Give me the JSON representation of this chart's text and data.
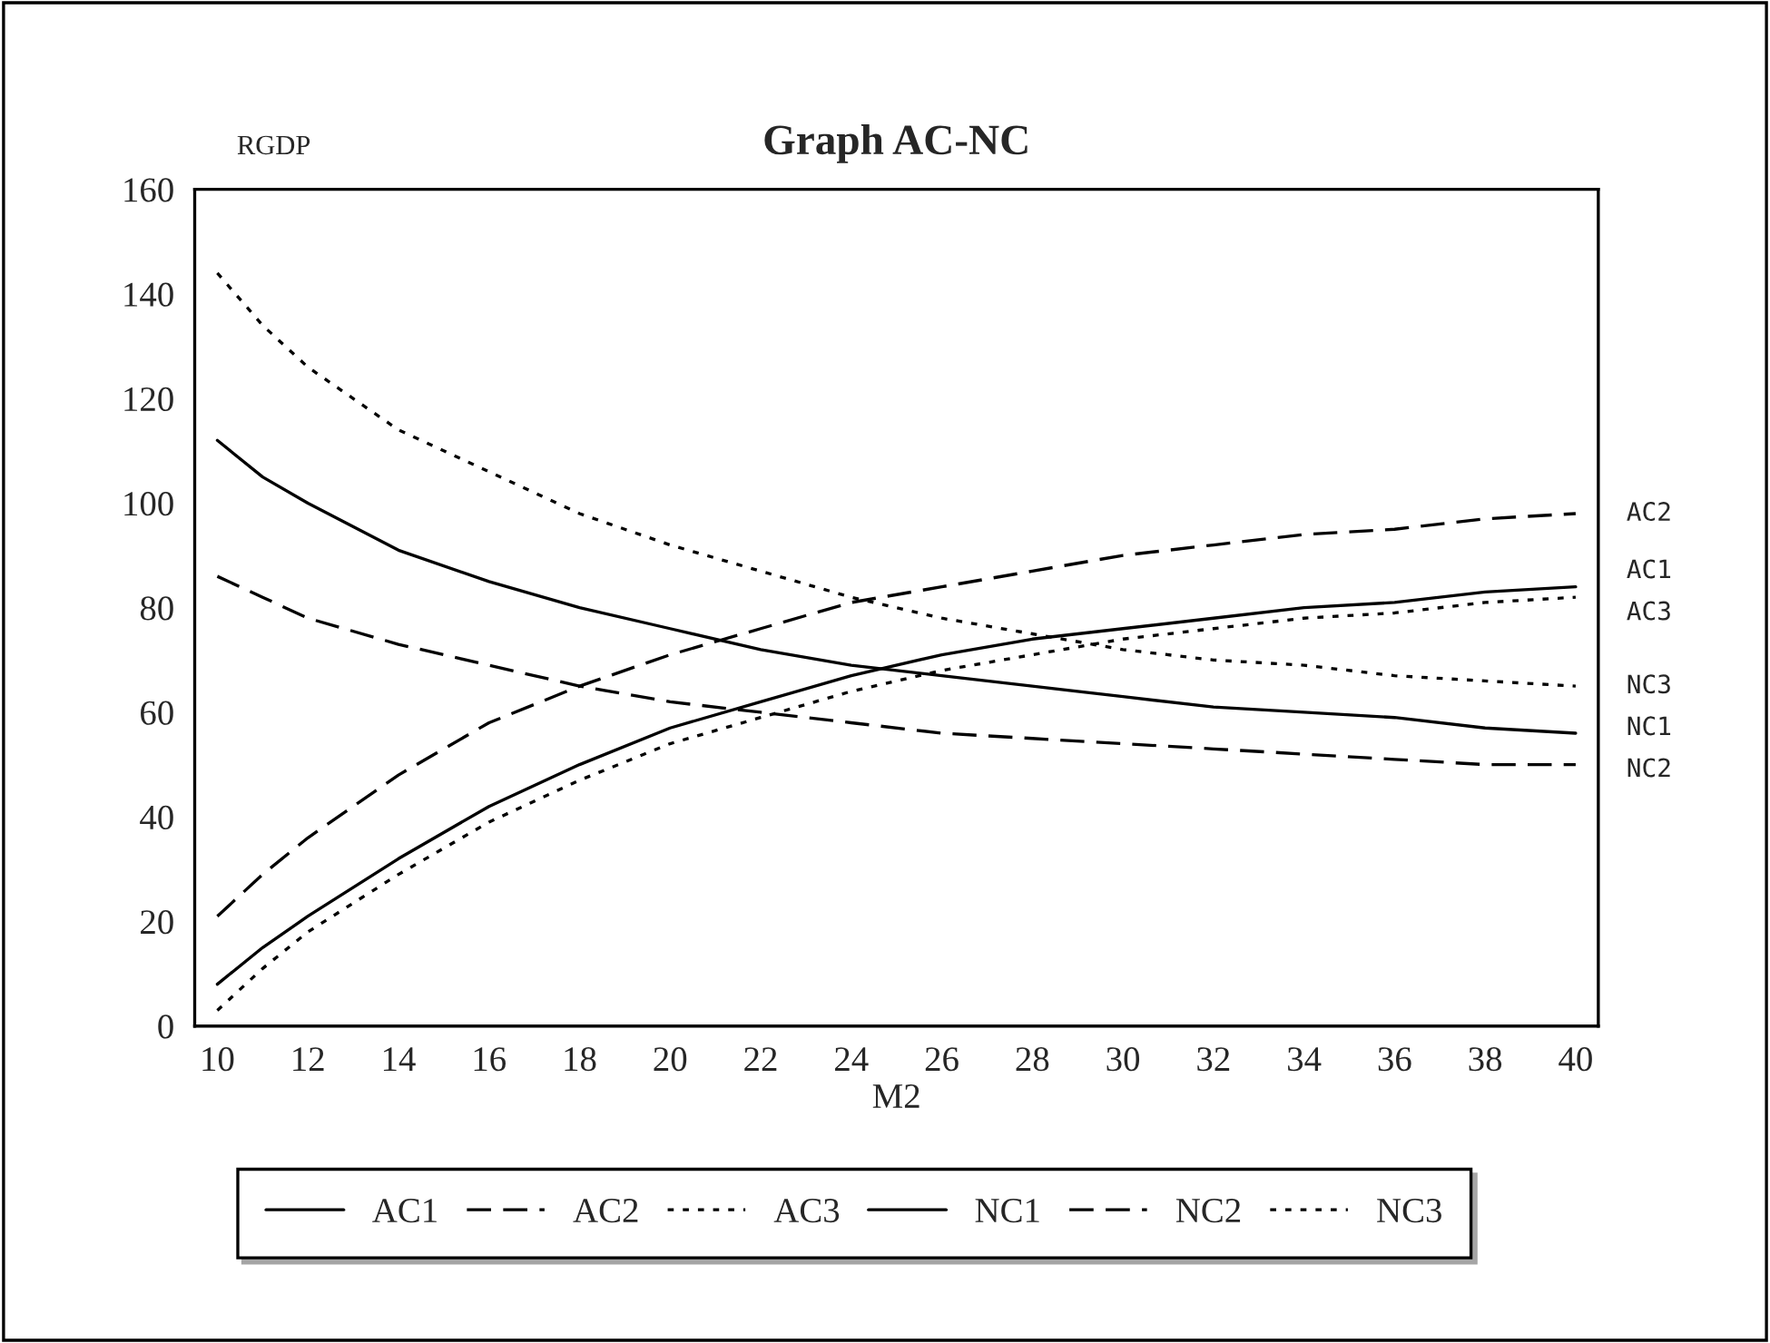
{
  "chart_data": {
    "type": "line",
    "title": "Graph AC-NC",
    "xlabel": "M2",
    "ylabel": "RGDP",
    "x": [
      10,
      11,
      12,
      14,
      16,
      18,
      20,
      22,
      24,
      26,
      28,
      30,
      32,
      34,
      36,
      38,
      40
    ],
    "series": [
      {
        "name": "AC1",
        "color": "#000000",
        "line_style": "solid",
        "values": [
          8,
          15,
          21,
          32,
          42,
          50,
          57,
          62,
          67,
          71,
          74,
          76,
          78,
          80,
          81,
          83,
          84
        ]
      },
      {
        "name": "AC2",
        "color": "#000000",
        "line_style": "dashed",
        "values": [
          21,
          29,
          36,
          48,
          58,
          65,
          71,
          76,
          81,
          84,
          87,
          90,
          92,
          94,
          95,
          97,
          98
        ]
      },
      {
        "name": "AC3",
        "color": "#000000",
        "line_style": "dotted",
        "values": [
          3,
          11,
          18,
          29,
          39,
          47,
          54,
          59,
          64,
          68,
          71,
          74,
          76,
          78,
          79,
          81,
          82
        ]
      },
      {
        "name": "NC1",
        "color": "#000000",
        "line_style": "solid",
        "values": [
          112,
          105,
          100,
          91,
          85,
          80,
          76,
          72,
          69,
          67,
          65,
          63,
          61,
          60,
          59,
          57,
          56
        ]
      },
      {
        "name": "NC2",
        "color": "#000000",
        "line_style": "dashed",
        "values": [
          86,
          82,
          78,
          73,
          69,
          65,
          62,
          60,
          58,
          56,
          55,
          54,
          53,
          52,
          51,
          50,
          50
        ]
      },
      {
        "name": "NC3",
        "color": "#000000",
        "line_style": "dotted",
        "values": [
          144,
          134,
          126,
          114,
          106,
          98,
          92,
          87,
          82,
          78,
          75,
          72,
          70,
          69,
          67,
          66,
          65
        ]
      }
    ],
    "xlim": [
      9.5,
      40.5
    ],
    "xticks": [
      10,
      12,
      14,
      16,
      18,
      20,
      22,
      24,
      26,
      28,
      30,
      32,
      34,
      36,
      38,
      40
    ],
    "ylim": [
      0,
      160
    ],
    "yticks": [
      0,
      20,
      40,
      60,
      80,
      100,
      120,
      140,
      160
    ],
    "grid": false,
    "legend": "bottom",
    "marker": "none"
  }
}
